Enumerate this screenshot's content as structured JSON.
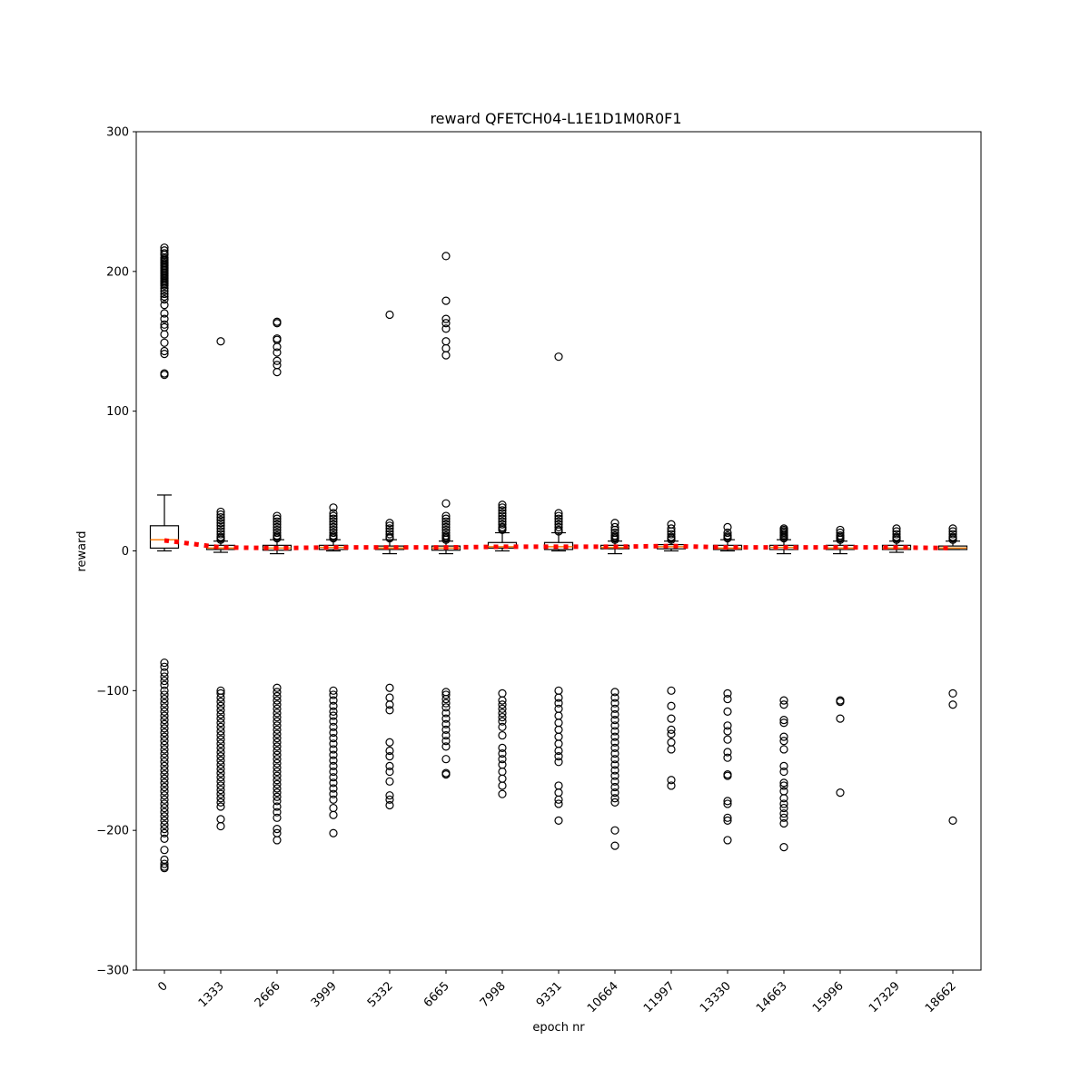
{
  "chart_data": {
    "type": "box",
    "title": "reward QFETCH04-L1E1D1M0R0F1",
    "xlabel": "epoch nr",
    "ylabel": "reward",
    "ylim": [
      -300,
      300
    ],
    "yticks": [
      -300,
      -200,
      -100,
      0,
      100,
      200,
      300
    ],
    "yticklabels": [
      "−300",
      "−200",
      "−100",
      "0",
      "100",
      "200",
      "300"
    ],
    "categories": [
      "0",
      "1333",
      "2666",
      "3999",
      "5332",
      "6665",
      "7998",
      "9331",
      "10664",
      "11997",
      "13330",
      "14663",
      "15996",
      "17329",
      "18662"
    ],
    "boxes": [
      {
        "whislo": 0,
        "q1": 2,
        "med": 8,
        "mean": 7.5,
        "q3": 18,
        "whishi": 40,
        "fliers": [
          217,
          215,
          213,
          212,
          210,
          209,
          208,
          207,
          206,
          205,
          204,
          203,
          202,
          201,
          200,
          199,
          198,
          197,
          196,
          195,
          194,
          193,
          192,
          191,
          190,
          188,
          186,
          184,
          182,
          180,
          176,
          170,
          166,
          162,
          160,
          155,
          149,
          143,
          141,
          127,
          126,
          -80,
          -83,
          -87,
          -90,
          -93,
          -96,
          -100,
          -103,
          -106,
          -109,
          -112,
          -115,
          -118,
          -121,
          -124,
          -127,
          -130,
          -133,
          -136,
          -139,
          -142,
          -145,
          -148,
          -151,
          -154,
          -157,
          -160,
          -163,
          -166,
          -169,
          -172,
          -175,
          -178,
          -181,
          -184,
          -187,
          -190,
          -193,
          -196,
          -199,
          -202,
          -206,
          -214,
          -221,
          -224,
          -226,
          -227
        ]
      },
      {
        "whislo": -1,
        "q1": 1,
        "med": 2,
        "mean": 2.5,
        "q3": 4,
        "whishi": 7,
        "fliers": [
          28,
          26,
          24,
          22,
          20,
          18,
          16,
          14,
          12,
          10,
          9,
          8,
          150,
          -100,
          -102,
          -105,
          -108,
          -111,
          -114,
          -117,
          -120,
          -123,
          -126,
          -129,
          -132,
          -135,
          -138,
          -141,
          -144,
          -147,
          -150,
          -153,
          -156,
          -159,
          -162,
          -165,
          -168,
          -171,
          -174,
          -177,
          -180,
          -183,
          -192,
          -197
        ]
      },
      {
        "whislo": -2,
        "q1": 0.5,
        "med": 2,
        "mean": 2,
        "q3": 4,
        "whishi": 8,
        "fliers": [
          25,
          23,
          21,
          19,
          17,
          15,
          13,
          11,
          10,
          9,
          164,
          163,
          152,
          151,
          146,
          142,
          136,
          133,
          128,
          -98,
          -101,
          -104,
          -107,
          -110,
          -113,
          -116,
          -119,
          -122,
          -125,
          -128,
          -131,
          -134,
          -137,
          -140,
          -143,
          -146,
          -149,
          -152,
          -155,
          -158,
          -161,
          -164,
          -167,
          -170,
          -173,
          -176,
          -179,
          -183,
          -187,
          -191,
          -199,
          -202,
          -207
        ]
      },
      {
        "whislo": 0,
        "q1": 1,
        "med": 2.5,
        "mean": 2.5,
        "q3": 4,
        "whishi": 8,
        "fliers": [
          31,
          27,
          25,
          23,
          21,
          19,
          17,
          15,
          13,
          11,
          10,
          9,
          -100,
          -103,
          -107,
          -111,
          -115,
          -118,
          -122,
          -126,
          -130,
          -134,
          -138,
          -142,
          -146,
          -150,
          -154,
          -158,
          -162,
          -166,
          -170,
          -174,
          -178,
          -184,
          -189,
          -202
        ]
      },
      {
        "whislo": -2,
        "q1": 1,
        "med": 2,
        "mean": 2.5,
        "q3": 3.5,
        "whishi": 8,
        "fliers": [
          20,
          18,
          16,
          14,
          12,
          10,
          9,
          169,
          -98,
          -105,
          -110,
          -114,
          -137,
          -143,
          -147,
          -154,
          -158,
          -165,
          -175,
          -178,
          -182
        ]
      },
      {
        "whislo": -2,
        "q1": 0.5,
        "med": 2,
        "mean": 2.5,
        "q3": 3.5,
        "whishi": 7,
        "fliers": [
          34,
          25,
          23,
          21,
          19,
          17,
          15,
          13,
          11,
          10,
          9,
          8,
          211,
          179,
          166,
          163,
          159,
          150,
          145,
          140,
          -101,
          -103,
          -106,
          -109,
          -112,
          -116,
          -120,
          -124,
          -128,
          -132,
          -136,
          -140,
          -149,
          -159,
          -160
        ]
      },
      {
        "whislo": 0,
        "q1": 2,
        "med": 3,
        "mean": 3,
        "q3": 6,
        "whishi": 13,
        "fliers": [
          33,
          31,
          29,
          27,
          25,
          23,
          21,
          19,
          17,
          16,
          15,
          -102,
          -107,
          -110,
          -113,
          -116,
          -119,
          -122,
          -126,
          -132,
          -141,
          -145,
          -149,
          -153,
          -158,
          -163,
          -168,
          -174
        ]
      },
      {
        "whislo": 0,
        "q1": 1,
        "med": 3,
        "mean": 3,
        "q3": 6,
        "whishi": 13,
        "fliers": [
          27,
          25,
          23,
          21,
          19,
          17,
          15,
          14,
          139,
          -100,
          -105,
          -109,
          -113,
          -118,
          -123,
          -128,
          -133,
          -138,
          -143,
          -147,
          -151,
          -168,
          -173,
          -178,
          -181,
          -193
        ]
      },
      {
        "whislo": -2,
        "q1": 1.5,
        "med": 2.5,
        "mean": 3,
        "q3": 4,
        "whishi": 7,
        "fliers": [
          20,
          17,
          15,
          13,
          11,
          10,
          9,
          8,
          -101,
          -105,
          -109,
          -113,
          -117,
          -121,
          -125,
          -129,
          -133,
          -137,
          -141,
          -145,
          -149,
          -153,
          -157,
          -161,
          -165,
          -169,
          -173,
          -177,
          -180,
          -200,
          -211
        ]
      },
      {
        "whislo": 0,
        "q1": 1.5,
        "med": 3,
        "mean": 3.5,
        "q3": 4.5,
        "whishi": 7,
        "fliers": [
          19,
          16,
          14,
          12,
          10,
          9,
          8,
          -100,
          -111,
          -120,
          -128,
          -131,
          -137,
          -142,
          -164,
          -168
        ]
      },
      {
        "whislo": 0,
        "q1": 1,
        "med": 2,
        "mean": 2.5,
        "q3": 4,
        "whishi": 8,
        "fliers": [
          17,
          13,
          11,
          10,
          9,
          -102,
          -106,
          -115,
          -125,
          -129,
          -135,
          -144,
          -148,
          -160,
          -161,
          -179,
          -181,
          -191,
          -193,
          -207
        ]
      },
      {
        "whislo": -2,
        "q1": 1,
        "med": 2.5,
        "mean": 2.5,
        "q3": 4,
        "whishi": 8,
        "fliers": [
          16,
          15,
          14,
          13,
          12,
          11,
          10,
          9,
          -107,
          -110,
          -121,
          -123,
          -133,
          -136,
          -142,
          -154,
          -158,
          -166,
          -168,
          -172,
          -177,
          -181,
          -184,
          -188,
          -191,
          -195,
          -212
        ]
      },
      {
        "whislo": -2,
        "q1": 1,
        "med": 2,
        "mean": 2.5,
        "q3": 4,
        "whishi": 7,
        "fliers": [
          15,
          13,
          11,
          10,
          9,
          8,
          -107,
          -108,
          -120,
          -173
        ]
      },
      {
        "whislo": -1,
        "q1": 1,
        "med": 2,
        "mean": 2.5,
        "q3": 4,
        "whishi": 7,
        "fliers": [
          16,
          14,
          12,
          10,
          9,
          8
        ]
      },
      {
        "whislo": 1,
        "q1": 1,
        "med": 2,
        "mean": 2,
        "q3": 3.5,
        "whishi": 7,
        "fliers": [
          16,
          14,
          12,
          10,
          9,
          8,
          -102,
          -110,
          -193
        ]
      }
    ],
    "mean_line": {
      "style": "dotted",
      "color": "#ff0000"
    },
    "box_color": "#000000",
    "median_color": "#ff7f0e",
    "grid": false,
    "legend": "none"
  }
}
